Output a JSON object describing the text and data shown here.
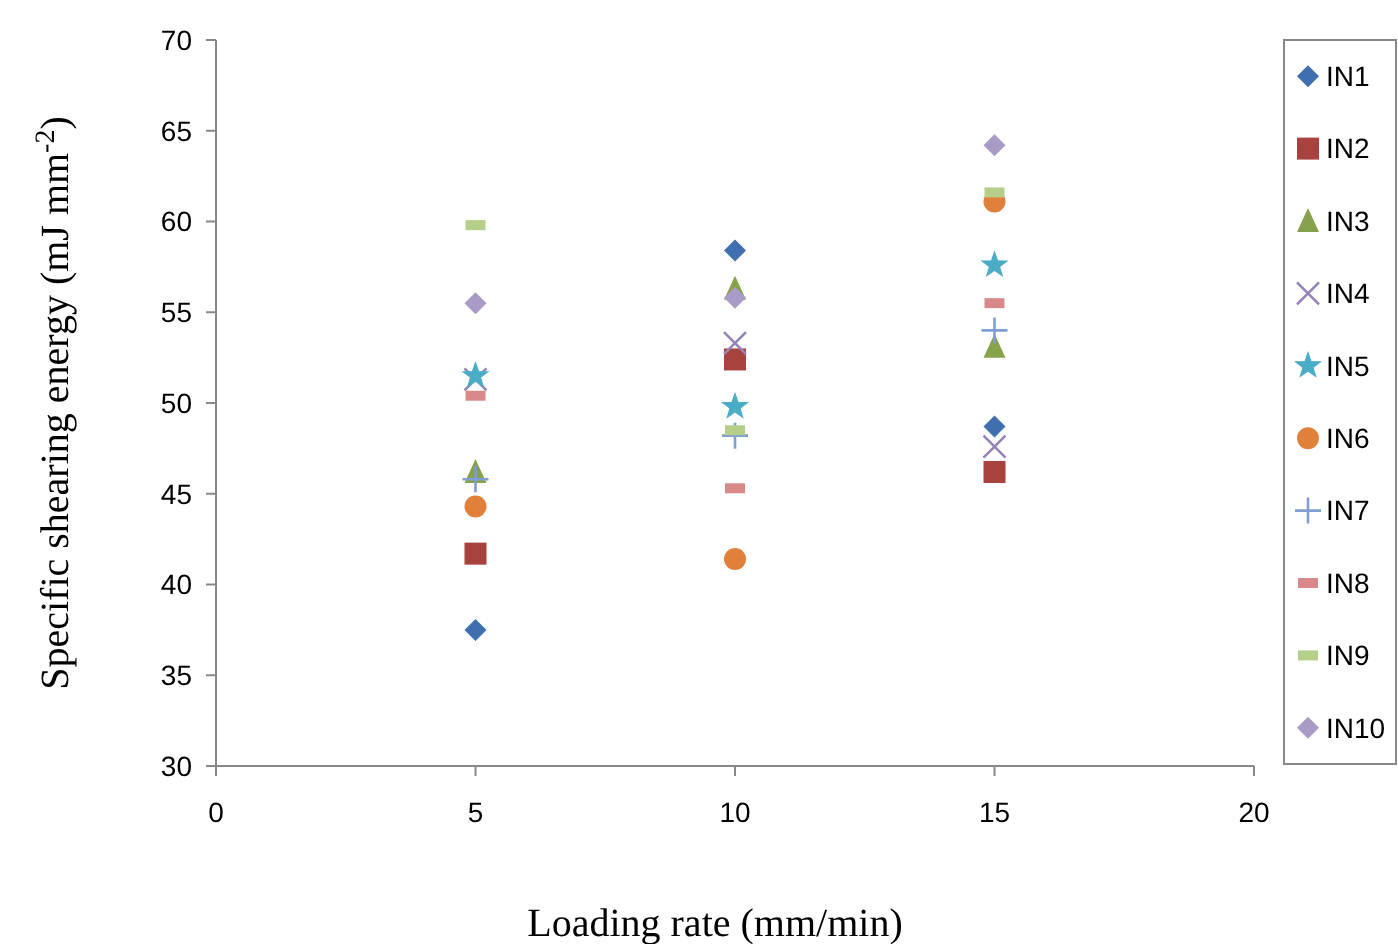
{
  "chart_data": {
    "type": "scatter",
    "xlabel": "Loading rate (mm/min)",
    "ylabel": "Specific shearing energy (mJ mm$^{-2}$)",
    "x": [
      5,
      10,
      15
    ],
    "xlim": [
      0,
      20
    ],
    "xticks": [
      0,
      5,
      10,
      15,
      20
    ],
    "ylim": [
      30,
      70
    ],
    "yticks": [
      30,
      35,
      40,
      45,
      50,
      55,
      60,
      65,
      70
    ],
    "grid": false,
    "legend": "right",
    "series": [
      {
        "name": "IN1",
        "color": "#3f6fae",
        "marker": "diamond",
        "values": [
          37.5,
          58.4,
          48.7
        ]
      },
      {
        "name": "IN2",
        "color": "#a8423f",
        "marker": "square",
        "values": [
          41.7,
          52.4,
          46.2
        ]
      },
      {
        "name": "IN3",
        "color": "#86a24a",
        "marker": "triangle",
        "values": [
          46.2,
          56.3,
          53.1
        ]
      },
      {
        "name": "IN4",
        "color": "#9484b8",
        "marker": "x",
        "values": [
          51.3,
          53.3,
          47.6
        ]
      },
      {
        "name": "IN5",
        "color": "#4bacc6",
        "marker": "star",
        "values": [
          51.5,
          49.8,
          57.6
        ]
      },
      {
        "name": "IN6",
        "color": "#e0803a",
        "marker": "circle",
        "values": [
          44.3,
          41.4,
          61.1
        ]
      },
      {
        "name": "IN7",
        "color": "#7f9fd0",
        "marker": "cross",
        "values": [
          45.8,
          48.2,
          54.0
        ]
      },
      {
        "name": "IN8",
        "color": "#d9898a",
        "values": [
          50.4,
          45.3,
          55.5
        ]
      },
      {
        "name": "IN9",
        "color": "#b5cf8a",
        "values": [
          59.8,
          48.5,
          61.6
        ]
      },
      {
        "name": "IN10",
        "color": "#a99bc7",
        "marker": "diamond",
        "values": [
          55.5,
          55.8,
          64.2
        ]
      }
    ]
  }
}
